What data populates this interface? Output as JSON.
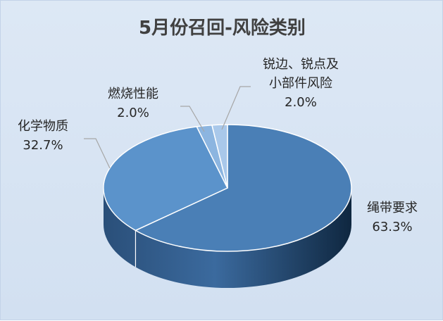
{
  "chart_data": {
    "type": "pie",
    "title": "5月份召回-风险类别",
    "slices": [
      {
        "label": "绳带要求",
        "value": 63.3,
        "value_label": "63.3%",
        "color": "#4a7fb6"
      },
      {
        "label": "化学物质",
        "value": 32.7,
        "value_label": "32.7%",
        "color": "#5b93cb"
      },
      {
        "label": "燃烧性能",
        "value": 2.0,
        "value_label": "2.0%",
        "color": "#8cb5e0"
      },
      {
        "label": "锐边、锐点及小部件风险",
        "label_lines": [
          "锐边、锐点及",
          "小部件风险"
        ],
        "value": 2.0,
        "value_label": "2.0%",
        "color": "#a9c8ea"
      }
    ],
    "legend": "none",
    "style": "3d"
  }
}
